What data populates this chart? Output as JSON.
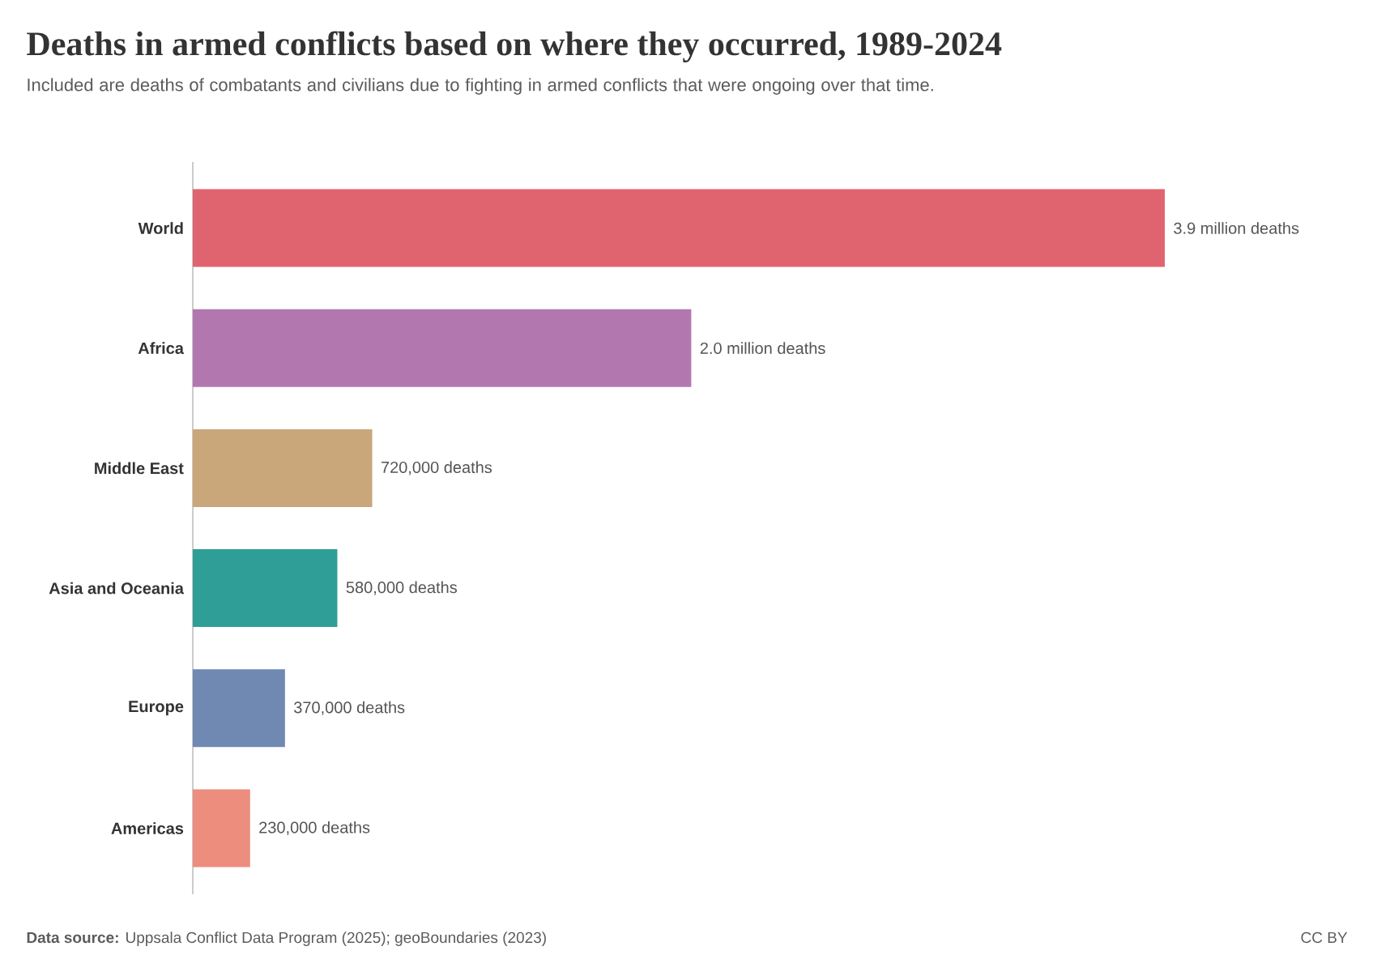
{
  "chart_data": {
    "type": "bar",
    "orientation": "horizontal",
    "title": "Deaths in armed conflicts based on where they occurred, 1989-2024",
    "subtitle": "Included are deaths of combatants and civilians due to fighting in armed conflicts that were ongoing over that time.",
    "categories": [
      "World",
      "Africa",
      "Middle East",
      "Asia and Oceania",
      "Europe",
      "Americas"
    ],
    "values": [
      3900000,
      2000000,
      720000,
      580000,
      370000,
      230000
    ],
    "value_labels": [
      "3.9 million deaths",
      "2.0 million deaths",
      "720,000 deaths",
      "580,000 deaths",
      "370,000 deaths",
      "230,000 deaths"
    ],
    "colors": [
      "#e0646f",
      "#b377b0",
      "#c9a77a",
      "#2f9e97",
      "#6f89b3",
      "#ec8d7e"
    ],
    "annotations": [
      "**Data source:** Uppsala Conflict Data Program (2025); geoBoundaries (2023)",
      "CC BY"
    ]
  }
}
